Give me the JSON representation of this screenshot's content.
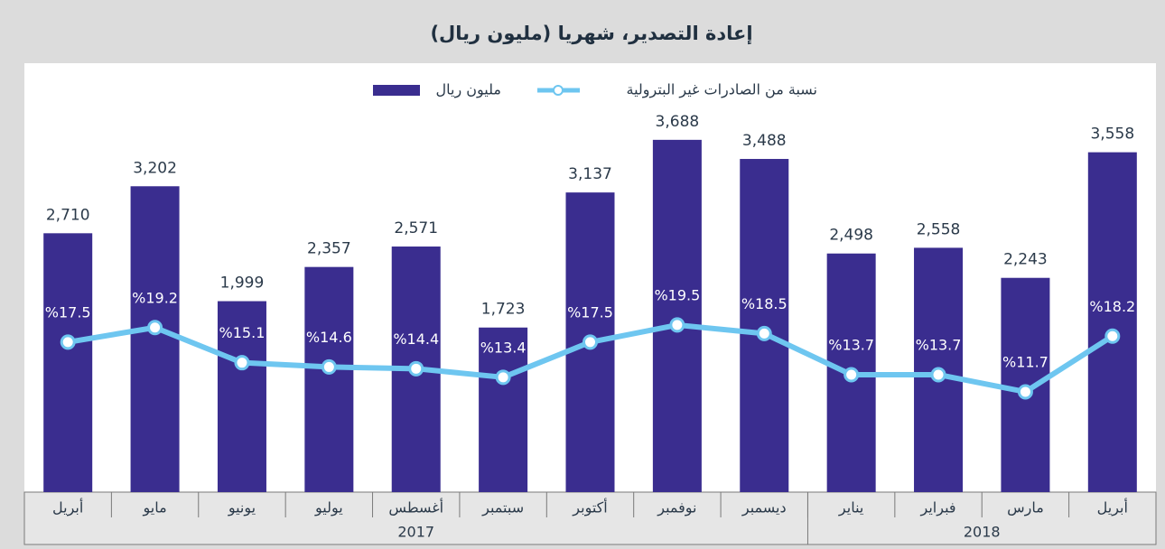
{
  "chart_data": {
    "type": "bar",
    "title": "إعادة التصدير، شهريا (مليون ريال)",
    "categories": [
      "أبريل",
      "مايو",
      "يونيو",
      "يوليو",
      "أغسطس",
      "سبتمبر",
      "أكتوبر",
      "نوفمبر",
      "ديسمبر",
      "يناير",
      "فبراير",
      "مارس",
      "أبريل"
    ],
    "groups": [
      {
        "label": "2017",
        "span": 9
      },
      {
        "label": "2018",
        "span": 4
      }
    ],
    "series": [
      {
        "name": "مليون ريال",
        "type": "bar",
        "color": "#3a2d8f",
        "values": [
          2710,
          3202,
          1999,
          2357,
          2571,
          1723,
          3137,
          3688,
          3488,
          2498,
          2558,
          2243,
          3558
        ],
        "value_labels": [
          "2,710",
          "3,202",
          "1,999",
          "2,357",
          "2,571",
          "1,723",
          "3,137",
          "3,688",
          "3,488",
          "2,498",
          "2,558",
          "2,243",
          "3,558"
        ]
      },
      {
        "name": "نسبة من الصادرات غير البترولية",
        "type": "line",
        "axis": "y2",
        "color": "#6ec6f0",
        "values": [
          17.5,
          19.2,
          15.1,
          14.6,
          14.4,
          13.4,
          17.5,
          19.5,
          18.5,
          13.7,
          13.7,
          11.7,
          18.2
        ],
        "value_labels": [
          "%17.5",
          "%19.2",
          "%15.1",
          "%14.6",
          "%14.4",
          "%13.4",
          "%17.5",
          "%19.5",
          "%18.5",
          "%13.7",
          "%13.7",
          "%11.7",
          "%18.2"
        ]
      }
    ],
    "ylim": [
      0,
      4235
    ],
    "y2lim": [
      0,
      47.2
    ]
  }
}
